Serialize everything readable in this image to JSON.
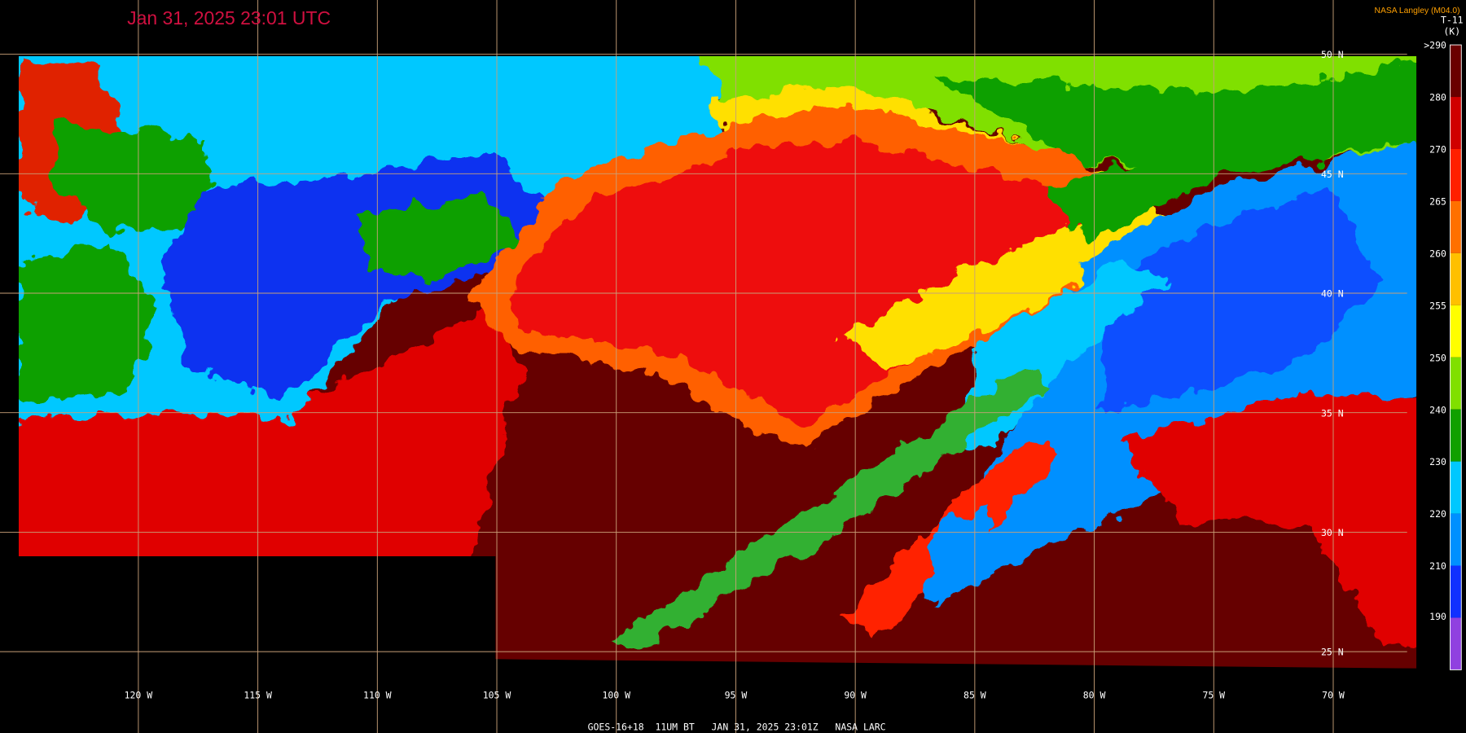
{
  "header": {
    "title": "Jan 31, 2025 23:01 UTC",
    "credit": "NASA Langley (M04.0)"
  },
  "colorbar": {
    "label": "T-11",
    "unit": "(K)",
    "ticks": [
      ">290",
      "280",
      "270",
      "265",
      "260",
      "255",
      "250",
      "240",
      "230",
      "220",
      "210",
      "190"
    ]
  },
  "map": {
    "latitudes": [
      "50 N",
      "45 N",
      "40 N",
      "35 N",
      "30 N",
      "25 N"
    ],
    "longitudes": [
      "120 W",
      "115 W",
      "110 W",
      "105 W",
      "100 W",
      "95 W",
      "90 W",
      "85 W",
      "80 W",
      "75 W",
      "70 W"
    ]
  },
  "footer": "GOES-16+18  11UM BT   JAN 31, 2025 23:01Z   NASA LARC"
}
